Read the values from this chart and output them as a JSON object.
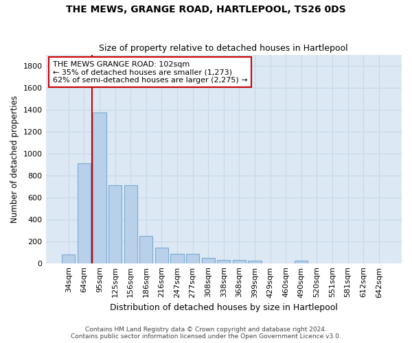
{
  "title": "THE MEWS, GRANGE ROAD, HARTLEPOOL, TS26 0DS",
  "subtitle": "Size of property relative to detached houses in Hartlepool",
  "xlabel": "Distribution of detached houses by size in Hartlepool",
  "ylabel": "Number of detached properties",
  "categories": [
    "34sqm",
    "64sqm",
    "95sqm",
    "125sqm",
    "156sqm",
    "186sqm",
    "216sqm",
    "247sqm",
    "277sqm",
    "308sqm",
    "338sqm",
    "368sqm",
    "399sqm",
    "429sqm",
    "460sqm",
    "490sqm",
    "520sqm",
    "551sqm",
    "581sqm",
    "612sqm",
    "642sqm"
  ],
  "values": [
    80,
    910,
    1375,
    710,
    710,
    245,
    140,
    85,
    85,
    50,
    30,
    30,
    20,
    0,
    0,
    20,
    0,
    0,
    0,
    0,
    0
  ],
  "bar_color": "#b8d0ea",
  "bar_edge_color": "#7aaad0",
  "redline_index": 2,
  "annotation_line1": "THE MEWS GRANGE ROAD: 102sqm",
  "annotation_line2": "← 35% of detached houses are smaller (1,273)",
  "annotation_line3": "62% of semi-detached houses are larger (2,275) →",
  "annotation_box_color": "#ffffff",
  "annotation_box_edge_color": "#cc0000",
  "redline_color": "#cc0000",
  "grid_color": "#c8d8e8",
  "ax_bg_color": "#dce8f4",
  "background_color": "#ffffff",
  "ylim": [
    0,
    1900
  ],
  "yticks": [
    0,
    200,
    400,
    600,
    800,
    1000,
    1200,
    1400,
    1600,
    1800
  ],
  "footer_line1": "Contains HM Land Registry data © Crown copyright and database right 2024.",
  "footer_line2": "Contains public sector information licensed under the Open Government Licence v3.0."
}
